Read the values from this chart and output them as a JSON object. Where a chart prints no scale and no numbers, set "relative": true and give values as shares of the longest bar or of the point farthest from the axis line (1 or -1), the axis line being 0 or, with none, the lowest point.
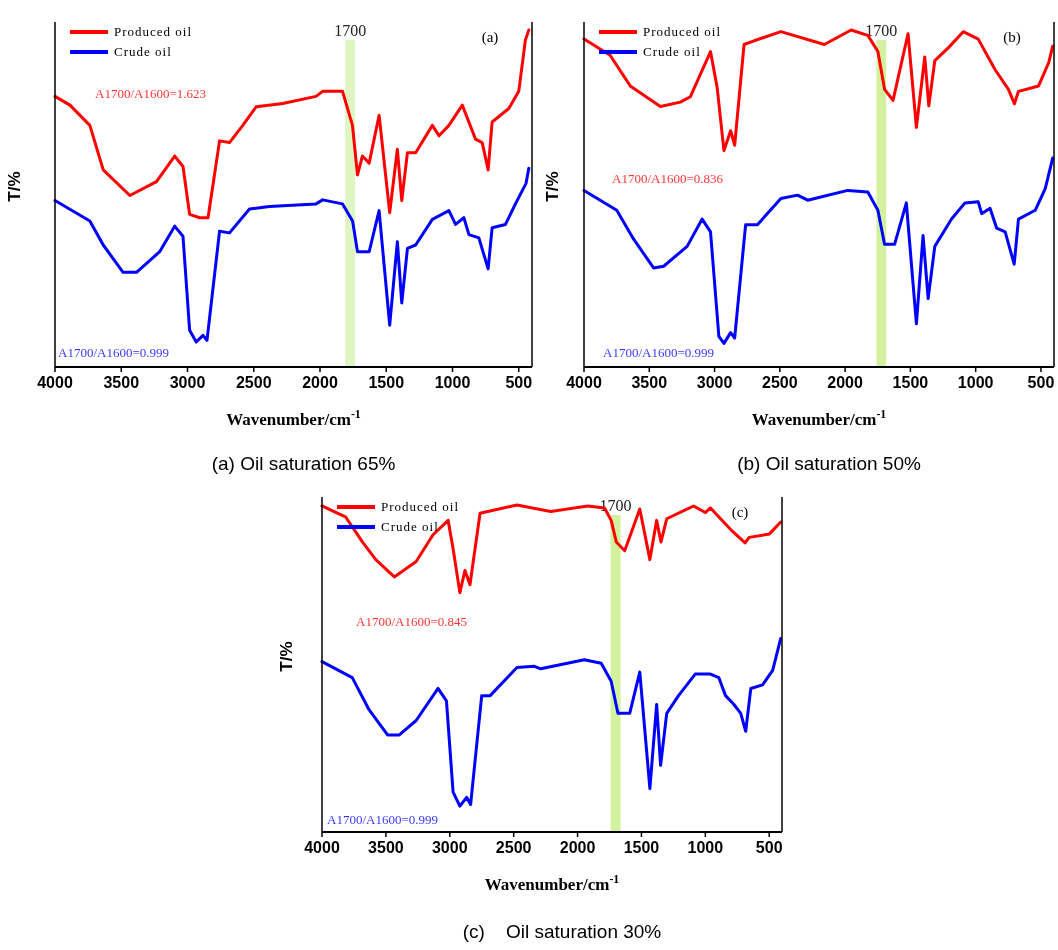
{
  "chart_data": [
    {
      "type": "line",
      "title": "(a) Oil saturation 65%",
      "xlabel": "Wavenumber/cm$^{-1}$",
      "ylabel": "T/%",
      "relative": true,
      "xlim": [
        4000,
        400
      ],
      "xticks": [
        4000,
        3500,
        3000,
        2500,
        2000,
        1500,
        1000,
        500
      ],
      "legend": "top left",
      "marker": "none",
      "line_style": "solid",
      "bands": [
        {
          "axis": "x",
          "from": 1810,
          "to": 1735,
          "label": "1700",
          "color": "#dff5c2"
        }
      ],
      "annotations": [
        "(a)",
        "A1700/A1600=1.623",
        "A1700/A1600=0.999"
      ],
      "series": [
        {
          "name": "Produced oil",
          "color": "#ff0000",
          "x": [
            4000,
            3887,
            3737,
            3636,
            3435,
            3234,
            3097,
            3034,
            2984,
            2908,
            2845,
            2758,
            2683,
            2583,
            2482,
            2281,
            2030,
            1980,
            1830,
            1755,
            1717,
            1680,
            1629,
            1554,
            1474,
            1416,
            1383,
            1340,
            1278,
            1152,
            1102,
            1027,
            926,
            826,
            776,
            731,
            701,
            575,
            500,
            450,
            424
          ],
          "values": [
            0.803,
            0.777,
            0.717,
            0.585,
            0.509,
            0.55,
            0.626,
            0.595,
            0.453,
            0.443,
            0.443,
            0.671,
            0.666,
            0.717,
            0.772,
            0.782,
            0.803,
            0.818,
            0.818,
            0.717,
            0.57,
            0.626,
            0.605,
            0.747,
            0.458,
            0.646,
            0.494,
            0.636,
            0.636,
            0.717,
            0.686,
            0.717,
            0.777,
            0.676,
            0.666,
            0.585,
            0.727,
            0.767,
            0.818,
            0.97,
            1.0
          ]
        },
        {
          "name": "Crude oil",
          "color": "#0000ff",
          "x": [
            4000,
            3737,
            3636,
            3486,
            3385,
            3210,
            3097,
            3034,
            2984,
            2934,
            2883,
            2853,
            2758,
            2683,
            2532,
            2382,
            2030,
            1980,
            1830,
            1754,
            1717,
            1629,
            1554,
            1474,
            1416,
            1383,
            1340,
            1278,
            1152,
            1027,
            977,
            914,
            876,
            801,
            731,
            701,
            600,
            525,
            445,
            424
          ],
          "values": [
            0.494,
            0.433,
            0.362,
            0.281,
            0.281,
            0.342,
            0.418,
            0.388,
            0.109,
            0.074,
            0.094,
            0.079,
            0.403,
            0.398,
            0.469,
            0.476,
            0.484,
            0.496,
            0.484,
            0.433,
            0.342,
            0.342,
            0.464,
            0.124,
            0.372,
            0.19,
            0.352,
            0.362,
            0.438,
            0.464,
            0.423,
            0.443,
            0.393,
            0.383,
            0.291,
            0.413,
            0.423,
            0.484,
            0.545,
            0.59
          ]
        }
      ]
    },
    {
      "type": "line",
      "title": "(b) Oil saturation 50%",
      "xlabel": "Wavenumber/cm$^{-1}$",
      "ylabel": "T/%",
      "relative": true,
      "xlim": [
        4000,
        400
      ],
      "xticks": [
        4000,
        3500,
        3000,
        2500,
        2000,
        1500,
        1000,
        500
      ],
      "legend": "top left",
      "marker": "none",
      "line_style": "solid",
      "bands": [
        {
          "axis": "x",
          "from": 1760,
          "to": 1685,
          "label": "1700",
          "color": "#d2f2a0"
        }
      ],
      "annotations": [
        "(b)",
        "A1700/A1600=0.836",
        "A1700/A1600=0.999"
      ],
      "series": [
        {
          "name": "Produced oil",
          "color": "#ff0000",
          "x": [
            4000,
            3800,
            3646,
            3415,
            3262,
            3185,
            3031,
            2980,
            2928,
            2877,
            2846,
            2774,
            2697,
            2492,
            2159,
            1954,
            1826,
            1749,
            1698,
            1633,
            1518,
            1454,
            1390,
            1359,
            1313,
            1210,
            1095,
            980,
            851,
            749,
            703,
            672,
            518,
            440,
            410
          ],
          "values": [
            0.973,
            0.925,
            0.834,
            0.773,
            0.786,
            0.802,
            0.936,
            0.829,
            0.642,
            0.701,
            0.658,
            0.957,
            0.968,
            0.995,
            0.957,
            1.0,
            0.984,
            0.936,
            0.824,
            0.791,
            0.989,
            0.711,
            0.92,
            0.775,
            0.909,
            0.947,
            0.995,
            0.973,
            0.882,
            0.824,
            0.781,
            0.818,
            0.834,
            0.904,
            0.952
          ]
        },
        {
          "name": "Crude oil",
          "color": "#0000ff",
          "x": [
            4000,
            3749,
            3621,
            3467,
            3390,
            3210,
            3095,
            3031,
            2967,
            2928,
            2877,
            2846,
            2762,
            2672,
            2492,
            2364,
            2287,
            1980,
            1826,
            1749,
            1698,
            1621,
            1531,
            1454,
            1403,
            1364,
            1313,
            1185,
            1082,
            980,
            954,
            890,
            839,
            774,
            705,
            672,
            544,
            467,
            410
          ],
          "values": [
            0.524,
            0.465,
            0.38,
            0.294,
            0.299,
            0.358,
            0.439,
            0.401,
            0.091,
            0.07,
            0.102,
            0.086,
            0.422,
            0.422,
            0.5,
            0.51,
            0.495,
            0.524,
            0.519,
            0.465,
            0.364,
            0.364,
            0.487,
            0.128,
            0.39,
            0.203,
            0.358,
            0.439,
            0.487,
            0.49,
            0.455,
            0.471,
            0.412,
            0.401,
            0.305,
            0.439,
            0.465,
            0.529,
            0.62
          ]
        }
      ]
    },
    {
      "type": "line",
      "title": "(c)    Oil saturation 30%",
      "xlabel": "Wavenumber/cm$^{-1}$",
      "ylabel": "T/%",
      "relative": true,
      "xlim": [
        4000,
        400
      ],
      "xticks": [
        4000,
        3500,
        3000,
        2500,
        2000,
        1500,
        1000,
        500
      ],
      "legend": "top left",
      "marker": "none",
      "line_style": "solid",
      "bands": [
        {
          "axis": "x",
          "from": 1742,
          "to": 1663,
          "label": "1700",
          "color": "#d2f2a0"
        }
      ],
      "annotations": [
        "(c)",
        "A1700/A1600=0.845",
        "A1700/A1600=0.999"
      ],
      "series": [
        {
          "name": "Produced oil",
          "color": "#ff0000",
          "x": [
            4000,
            3816,
            3684,
            3579,
            3434,
            3263,
            3131,
            3013,
            2974,
            2921,
            2881,
            2842,
            2763,
            2474,
            2210,
            1921,
            1789,
            1737,
            1697,
            1631,
            1513,
            1434,
            1381,
            1347,
            1302,
            1092,
            1000,
            960,
            789,
            689,
            657,
            500,
            410
          ],
          "values": [
            0.997,
            0.964,
            0.887,
            0.833,
            0.78,
            0.827,
            0.909,
            0.953,
            0.866,
            0.732,
            0.8,
            0.756,
            0.975,
            1.0,
            0.98,
            0.997,
            0.991,
            0.953,
            0.887,
            0.86,
            0.988,
            0.833,
            0.953,
            0.887,
            0.958,
            0.997,
            0.977,
            0.991,
            0.92,
            0.884,
            0.901,
            0.911,
            0.948
          ]
        },
        {
          "name": "Crude oil",
          "color": "#0000ff",
          "x": [
            4000,
            3763,
            3632,
            3487,
            3395,
            3263,
            3092,
            3026,
            2974,
            2921,
            2868,
            2837,
            2750,
            2684,
            2474,
            2342,
            2289,
            1947,
            1815,
            1737,
            1684,
            1592,
            1513,
            1434,
            1381,
            1350,
            1302,
            1210,
            1079,
            960,
            894,
            842,
            776,
            723,
            684,
            644,
            552,
            473,
            410
          ],
          "values": [
            0.521,
            0.472,
            0.374,
            0.297,
            0.297,
            0.341,
            0.439,
            0.401,
            0.122,
            0.079,
            0.106,
            0.084,
            0.417,
            0.417,
            0.503,
            0.507,
            0.499,
            0.527,
            0.516,
            0.461,
            0.363,
            0.363,
            0.489,
            0.133,
            0.39,
            0.204,
            0.363,
            0.417,
            0.483,
            0.483,
            0.472,
            0.417,
            0.39,
            0.363,
            0.308,
            0.439,
            0.45,
            0.494,
            0.592
          ]
        }
      ]
    }
  ]
}
